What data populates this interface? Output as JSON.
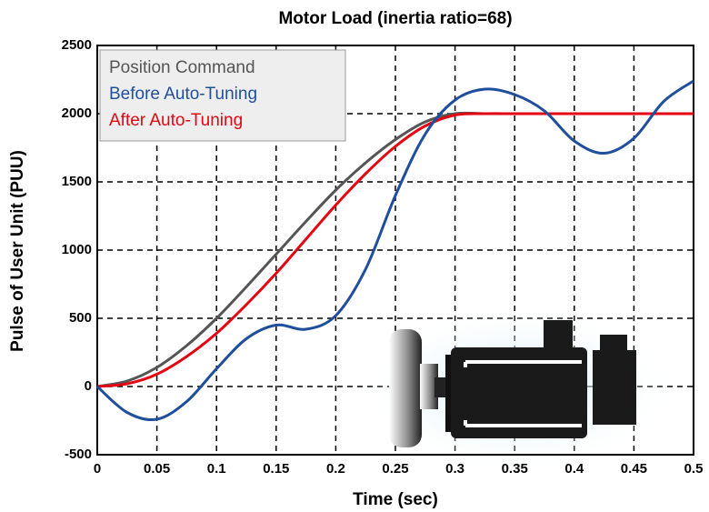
{
  "chart_data": {
    "type": "line",
    "title": "Motor Load (inertia ratio=68)",
    "x_label": "Time (sec)",
    "y_label": "Pulse of User Unit (PUU)",
    "x": [
      0,
      0.025,
      0.05,
      0.075,
      0.1,
      0.125,
      0.15,
      0.175,
      0.2,
      0.225,
      0.25,
      0.275,
      0.3,
      0.325,
      0.35,
      0.375,
      0.4,
      0.425,
      0.45,
      0.475,
      0.5
    ],
    "series": [
      {
        "name": "Position Command",
        "color": "#555555",
        "values": [
          0,
          40,
          140,
          300,
          500,
          730,
          970,
          1210,
          1440,
          1640,
          1810,
          1940,
          2000,
          2000,
          2000,
          2000,
          2000,
          2000,
          2000,
          2000,
          2000
        ]
      },
      {
        "name": "Before Auto-Tuning",
        "color": "#1f4e9c",
        "values": [
          0,
          -190,
          -240,
          -110,
          130,
          350,
          450,
          420,
          520,
          860,
          1400,
          1850,
          2100,
          2180,
          2140,
          2020,
          1800,
          1710,
          1820,
          2090,
          2240
        ]
      },
      {
        "name": "After Auto-Tuning",
        "color": "#e30613",
        "values": [
          0,
          20,
          90,
          220,
          390,
          600,
          830,
          1080,
          1330,
          1560,
          1760,
          1910,
          1990,
          2000,
          2000,
          2000,
          2000,
          2000,
          2000,
          2000,
          2000
        ]
      }
    ],
    "xlim": [
      0,
      0.5
    ],
    "xticks": [
      0,
      0.05,
      0.1,
      0.15,
      0.2,
      0.25,
      0.3,
      0.35,
      0.4,
      0.45,
      0.5
    ],
    "ylim": [
      -500,
      2500
    ],
    "yticks": [
      -500,
      0,
      500,
      1000,
      1500,
      2000,
      2500
    ],
    "grid": true,
    "legend": "upper left"
  }
}
